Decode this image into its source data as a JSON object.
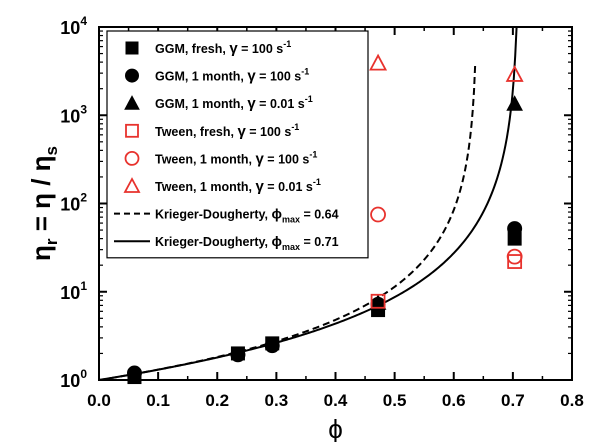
{
  "chart_data": {
    "type": "scatter",
    "x_scale": "linear",
    "y_scale": "log",
    "xlim": [
      0.0,
      0.8
    ],
    "ylim": [
      1,
      10000
    ],
    "xlabel": "ϕ",
    "ylabel": "ηr = η / ηs",
    "x_ticks": [
      "0.0",
      "0.1",
      "0.2",
      "0.3",
      "0.4",
      "0.5",
      "0.6",
      "0.7",
      "0.8"
    ],
    "y_ticks": [
      {
        "value": 1,
        "mantissa": "10",
        "exp": "0"
      },
      {
        "value": 10,
        "mantissa": "10",
        "exp": "1"
      },
      {
        "value": 100,
        "mantissa": "10",
        "exp": "2"
      },
      {
        "value": 1000,
        "mantissa": "10",
        "exp": "3"
      },
      {
        "value": 10000,
        "mantissa": "10",
        "exp": "4"
      }
    ],
    "legend_position": "top-left",
    "grid": false,
    "series": [
      {
        "name": "GGM, fresh, γ̇ = 100 s-1",
        "label": {
          "main": "GGM, fresh, ",
          "gamma": "γ",
          "rest": " = 100 s",
          "sup": "-1"
        },
        "marker": "square-filled",
        "color": "#000000",
        "points": [
          [
            0.06,
            1.08
          ],
          [
            0.235,
            2.0
          ],
          [
            0.293,
            2.6
          ],
          [
            0.472,
            6.2
          ],
          [
            0.703,
            40
          ]
        ]
      },
      {
        "name": "GGM, 1 month, γ̇ = 100 s-1",
        "label": {
          "main": "GGM, 1 month, ",
          "gamma": "γ",
          "rest": " = 100 s",
          "sup": "-1"
        },
        "marker": "circle-filled",
        "color": "#000000",
        "points": [
          [
            0.06,
            1.2
          ],
          [
            0.235,
            1.93
          ],
          [
            0.293,
            2.45
          ],
          [
            0.472,
            7.2
          ],
          [
            0.703,
            52
          ]
        ]
      },
      {
        "name": "GGM, 1 month, γ̇ = 0.01 s-1",
        "label": {
          "main": "GGM, 1 month, ",
          "gamma": "γ",
          "rest": " = 0.01 s",
          "sup": "-1"
        },
        "marker": "triangle-filled",
        "color": "#000000",
        "points": [
          [
            0.472,
            7.5
          ],
          [
            0.703,
            1350
          ]
        ]
      },
      {
        "name": "Tween, fresh, γ̇ = 100 s-1",
        "label": {
          "main": "Tween, fresh, ",
          "gamma": "γ",
          "rest": " = 100 s",
          "sup": "-1"
        },
        "marker": "square-open",
        "color": "#e8322d",
        "points": [
          [
            0.472,
            7.8
          ],
          [
            0.703,
            22
          ]
        ]
      },
      {
        "name": "Tween, 1 month, γ̇ = 100 s-1",
        "label": {
          "main": "Tween, 1 month, ",
          "gamma": "γ",
          "rest": " = 100 s",
          "sup": "-1"
        },
        "marker": "circle-open",
        "color": "#e8322d",
        "points": [
          [
            0.472,
            75
          ],
          [
            0.703,
            25
          ]
        ]
      },
      {
        "name": "Tween, 1 month, γ̇ = 0.01 s-1",
        "label": {
          "main": "Tween, 1 month, ",
          "gamma": "γ",
          "rest": " = 0.01 s",
          "sup": "-1"
        },
        "marker": "triangle-open",
        "color": "#e8322d",
        "points": [
          [
            0.472,
            3900
          ],
          [
            0.703,
            2900
          ]
        ]
      },
      {
        "name": "Krieger-Dougherty, ϕmax = 0.64",
        "label": {
          "main": "Krieger-Dougherty, ",
          "gamma": "",
          "phi": "ϕ",
          "sub": "max",
          "rest": " = 0.64"
        },
        "marker": "line-dashed",
        "color": "#000000",
        "model": "krieger-dougherty",
        "phi_max": 0.64,
        "phi_range": [
          0.0,
          0.6364
        ]
      },
      {
        "name": "Krieger-Dougherty, ϕmax = 0.71",
        "label": {
          "main": "Krieger-Dougherty, ",
          "gamma": "",
          "phi": "ϕ",
          "sub": "max",
          "rest": " = 0.71"
        },
        "marker": "line-solid",
        "color": "#000000",
        "model": "krieger-dougherty",
        "phi_max": 0.71,
        "phi_range": [
          0.0,
          0.7063
        ]
      }
    ]
  }
}
